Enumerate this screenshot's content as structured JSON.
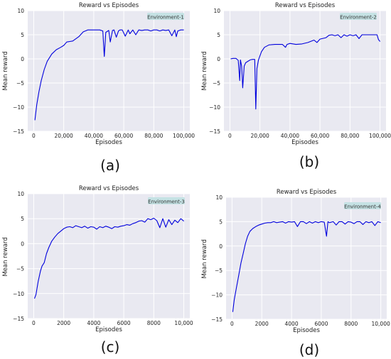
{
  "colors": {
    "line": "#0000dd",
    "background": "#e9e9f1",
    "legend_box": "#c5e2e4"
  },
  "chart_data": [
    {
      "type": "line",
      "title": "Reward vs Episodes",
      "xlabel": "Episodes",
      "ylabel": "Mean reward",
      "annotation": "Environment-1",
      "caption": "(a)",
      "xlim": [
        -4000,
        104000
      ],
      "ylim": [
        -15,
        10
      ],
      "xticks": [
        0,
        20000,
        40000,
        60000,
        80000,
        100000
      ],
      "xtick_labels": [
        "0",
        "20,000",
        "40,000",
        "60,000",
        "80,000",
        "100,000"
      ],
      "yticks": [
        -15,
        -10,
        -5,
        0,
        5,
        10
      ],
      "ytick_labels": [
        "−15",
        "−10",
        "−5",
        "0",
        "5",
        "10"
      ],
      "grid": true,
      "series": [
        {
          "x": [
            800,
            2000,
            3500,
            5000,
            7000,
            9000,
            12000,
            15000,
            18000,
            20000,
            22000,
            24000,
            26000,
            30000,
            33000,
            36000,
            38000,
            40000,
            44000,
            46000,
            47000,
            48000,
            50000,
            51000,
            52500,
            53500,
            55000,
            56500,
            57500,
            59000,
            61000,
            63000,
            64000,
            66000,
            68000,
            70000,
            72000,
            74000,
            76000,
            78000,
            80000,
            82000,
            84000,
            86000,
            88000,
            90000,
            92000,
            94000,
            95000,
            96000,
            98000,
            100000
          ],
          "y": [
            -12.7,
            -9.5,
            -6.8,
            -4.5,
            -2.2,
            -0.5,
            1.0,
            1.9,
            2.4,
            2.8,
            3.5,
            3.6,
            3.7,
            4.6,
            5.6,
            6.0,
            6.0,
            6.0,
            6.0,
            5.8,
            0.5,
            5.5,
            5.9,
            3.5,
            5.9,
            6.0,
            4.5,
            5.8,
            6.0,
            6.0,
            4.7,
            6.0,
            5.2,
            6.0,
            5.0,
            6.0,
            5.9,
            6.0,
            6.0,
            5.8,
            6.0,
            6.0,
            5.8,
            6.0,
            5.9,
            6.0,
            4.8,
            6.0,
            4.6,
            5.8,
            6.0,
            6.0
          ]
        }
      ]
    },
    {
      "type": "line",
      "title": "Reward vs Episodes",
      "xlabel": "Episodes",
      "ylabel": "Mean reward",
      "annotation": "Environment-2",
      "caption": "(b)",
      "xlim": [
        -4000,
        104000
      ],
      "ylim": [
        -15,
        10
      ],
      "xticks": [
        0,
        20000,
        40000,
        60000,
        80000,
        100000
      ],
      "xtick_labels": [
        "0",
        "20,000",
        "40,000",
        "60,000",
        "80,000",
        "100,000"
      ],
      "yticks": [
        -15,
        -10,
        -5,
        0,
        5,
        10
      ],
      "ytick_labels": [
        "−15",
        "−10",
        "−5",
        "0",
        "5",
        "10"
      ],
      "grid": true,
      "series": [
        {
          "x": [
            500,
            2000,
            4000,
            5500,
            6500,
            7000,
            7800,
            8500,
            9500,
            10500,
            12000,
            13500,
            15000,
            16500,
            17200,
            18000,
            19000,
            21000,
            23000,
            26000,
            30000,
            35000,
            37000,
            38000,
            40000,
            44000,
            48000,
            52000,
            56000,
            58000,
            60000,
            64000,
            66000,
            68000,
            70000,
            72000,
            74000,
            76000,
            78000,
            80000,
            82000,
            84000,
            86000,
            88000,
            90000,
            94000,
            98000,
            99000,
            100000
          ],
          "y": [
            0.0,
            0.1,
            0.1,
            -0.3,
            -4.5,
            -0.2,
            -1.5,
            -6.0,
            -1.5,
            -0.8,
            -0.5,
            -0.2,
            -0.1,
            -0.1,
            -10.4,
            -2.0,
            -0.2,
            1.5,
            2.4,
            2.9,
            3.0,
            3.0,
            2.4,
            3.0,
            3.2,
            3.0,
            3.1,
            3.4,
            3.9,
            3.4,
            4.1,
            4.4,
            4.9,
            5.0,
            4.8,
            5.0,
            4.4,
            5.0,
            4.7,
            5.0,
            4.8,
            5.0,
            4.2,
            5.0,
            5.0,
            5.0,
            5.0,
            4.0,
            3.6
          ]
        }
      ]
    },
    {
      "type": "line",
      "title": "Reward vs Episodes",
      "xlabel": "Episodes",
      "ylabel": "Mean reward",
      "annotation": "Environment-3",
      "caption": "(c)",
      "xlim": [
        -400,
        10400
      ],
      "ylim": [
        -15,
        10
      ],
      "xticks": [
        0,
        2000,
        4000,
        6000,
        8000,
        10000
      ],
      "xtick_labels": [
        "0",
        "2000",
        "4000",
        "6000",
        "8000",
        "10,000"
      ],
      "yticks": [
        -15,
        -10,
        -5,
        0,
        5,
        10
      ],
      "ytick_labels": [
        "−15",
        "−10",
        "−5",
        "0",
        "5",
        "10"
      ],
      "grid": true,
      "series": [
        {
          "x": [
            50,
            150,
            300,
            450,
            550,
            700,
            850,
            1000,
            1200,
            1400,
            1600,
            1800,
            2000,
            2200,
            2400,
            2600,
            2800,
            3000,
            3200,
            3400,
            3600,
            3800,
            4000,
            4200,
            4400,
            4600,
            4800,
            5000,
            5200,
            5400,
            5600,
            5800,
            6000,
            6200,
            6400,
            6600,
            6800,
            7000,
            7200,
            7400,
            7600,
            7800,
            8000,
            8200,
            8400,
            8600,
            8800,
            9000,
            9200,
            9400,
            9600,
            9800,
            10000
          ],
          "y": [
            -11.0,
            -10.2,
            -7.5,
            -5.5,
            -4.5,
            -3.8,
            -2.0,
            -0.8,
            0.5,
            1.3,
            2.0,
            2.5,
            3.0,
            3.3,
            3.4,
            3.2,
            3.6,
            3.4,
            3.2,
            3.5,
            3.1,
            3.4,
            3.3,
            2.9,
            3.4,
            3.2,
            3.5,
            3.3,
            3.0,
            3.4,
            3.3,
            3.5,
            3.6,
            3.8,
            3.7,
            4.0,
            4.2,
            4.5,
            4.6,
            4.3,
            5.0,
            4.8,
            5.1,
            4.6,
            3.2,
            5.0,
            3.3,
            4.8,
            3.8,
            4.7,
            4.2,
            5.0,
            4.5
          ]
        }
      ]
    },
    {
      "type": "line",
      "title": "Reward vs Episodes",
      "xlabel": "Episodes",
      "ylabel": "Mean reward",
      "annotation": "Environment-4",
      "caption": "(d)",
      "xlim": [
        -400,
        10400
      ],
      "ylim": [
        -15,
        10
      ],
      "xticks": [
        0,
        2000,
        4000,
        6000,
        8000,
        10000
      ],
      "xtick_labels": [
        "0",
        "2000",
        "4000",
        "6000",
        "8000",
        "10,000"
      ],
      "yticks": [
        -15,
        -10,
        -5,
        0,
        5,
        10
      ],
      "ytick_labels": [
        "−15",
        "−10",
        "−5",
        "0",
        "5",
        "10"
      ],
      "grid": true,
      "series": [
        {
          "x": [
            50,
            150,
            300,
            450,
            600,
            750,
            900,
            1050,
            1200,
            1400,
            1600,
            1800,
            2000,
            2200,
            2400,
            2600,
            2800,
            3000,
            3200,
            3400,
            3600,
            3800,
            4000,
            4200,
            4400,
            4600,
            4800,
            5000,
            5200,
            5400,
            5600,
            5800,
            6000,
            6200,
            6350,
            6450,
            6550,
            6800,
            7000,
            7200,
            7400,
            7600,
            7800,
            8000,
            8200,
            8400,
            8600,
            8800,
            9000,
            9200,
            9400,
            9600,
            9800,
            10000
          ],
          "y": [
            -13.5,
            -11.0,
            -8.5,
            -6.0,
            -3.5,
            -1.5,
            0.5,
            2.0,
            3.0,
            3.6,
            4.0,
            4.3,
            4.5,
            4.7,
            4.8,
            4.8,
            5.0,
            4.8,
            4.9,
            5.0,
            4.7,
            5.0,
            4.9,
            5.0,
            4.0,
            5.0,
            5.0,
            4.6,
            5.0,
            4.7,
            5.0,
            4.8,
            5.0,
            4.9,
            2.0,
            5.0,
            4.8,
            5.0,
            4.3,
            5.0,
            5.0,
            4.5,
            5.0,
            4.9,
            4.6,
            5.0,
            5.0,
            4.4,
            5.0,
            4.8,
            5.0,
            4.2,
            5.0,
            4.8
          ]
        }
      ]
    }
  ]
}
